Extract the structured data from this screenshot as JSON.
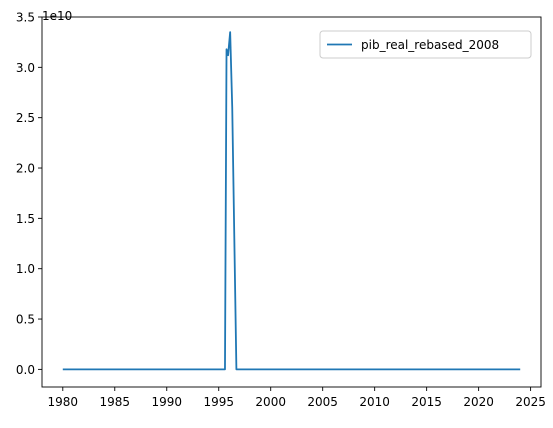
{
  "chart_data": {
    "type": "line",
    "title": "",
    "xlabel": "",
    "ylabel": "",
    "y_offset_label": "1e10",
    "xlim": [
      1978,
      2026
    ],
    "ylim": [
      -0.175,
      3.5
    ],
    "x_ticks": [
      1980,
      1985,
      1990,
      1995,
      2000,
      2005,
      2010,
      2015,
      2020,
      2025
    ],
    "y_ticks": [
      0.0,
      0.5,
      1.0,
      1.5,
      2.0,
      2.5,
      3.0,
      3.5
    ],
    "y_tick_labels": [
      "0.0",
      "0.5",
      "1.0",
      "1.5",
      "2.0",
      "2.5",
      "3.0",
      "3.5"
    ],
    "legend_position": "top-right",
    "grid": false,
    "series": [
      {
        "name": "pib_real_rebased_2008",
        "color": "#1f77b4",
        "x": [
          1980,
          1995.6,
          1995.75,
          1995.9,
          1996.1,
          1996.3,
          1996.5,
          1996.7,
          2024
        ],
        "y": [
          0.0,
          0.0,
          3.18,
          3.12,
          3.35,
          2.6,
          1.3,
          0.0,
          0.0
        ]
      }
    ]
  }
}
